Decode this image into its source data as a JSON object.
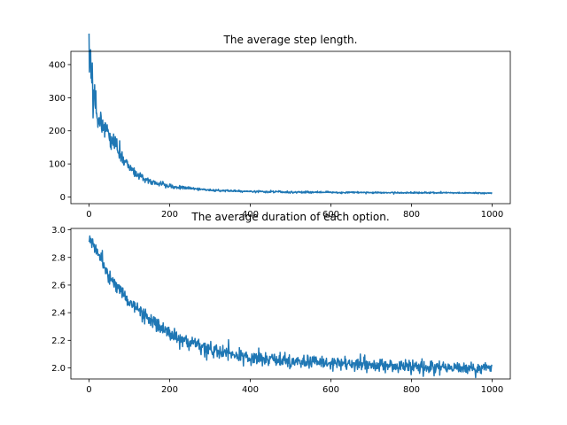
{
  "chart_data": [
    {
      "type": "line",
      "title": "The average step length.",
      "xlabel": "",
      "ylabel": "",
      "xlim": [
        -45,
        1045
      ],
      "ylim": [
        -20,
        440
      ],
      "xticks": [
        0,
        200,
        400,
        600,
        800,
        1000
      ],
      "yticks": [
        0,
        100,
        200,
        300,
        400
      ],
      "grid": false,
      "color": "#1f77b4",
      "n_points": 1000,
      "x_range": [
        0,
        999
      ],
      "keypoints": [
        {
          "x": 0,
          "y": 395
        },
        {
          "x": 3,
          "y": 410
        },
        {
          "x": 10,
          "y": 330
        },
        {
          "x": 20,
          "y": 255
        },
        {
          "x": 30,
          "y": 225
        },
        {
          "x": 40,
          "y": 210
        },
        {
          "x": 50,
          "y": 185
        },
        {
          "x": 60,
          "y": 170
        },
        {
          "x": 70,
          "y": 155
        },
        {
          "x": 80,
          "y": 120
        },
        {
          "x": 90,
          "y": 110
        },
        {
          "x": 100,
          "y": 90
        },
        {
          "x": 120,
          "y": 68
        },
        {
          "x": 140,
          "y": 55
        },
        {
          "x": 160,
          "y": 45
        },
        {
          "x": 180,
          "y": 38
        },
        {
          "x": 200,
          "y": 32
        },
        {
          "x": 250,
          "y": 26
        },
        {
          "x": 300,
          "y": 21
        },
        {
          "x": 400,
          "y": 17
        },
        {
          "x": 500,
          "y": 15
        },
        {
          "x": 600,
          "y": 14
        },
        {
          "x": 700,
          "y": 13.5
        },
        {
          "x": 800,
          "y": 13
        },
        {
          "x": 900,
          "y": 12.5
        },
        {
          "x": 999,
          "y": 12
        }
      ],
      "noise": 0.09
    },
    {
      "type": "line",
      "title": "The average duration of each option.",
      "xlabel": "",
      "ylabel": "",
      "xlim": [
        -45,
        1045
      ],
      "ylim": [
        1.92,
        3.01
      ],
      "xticks": [
        0,
        200,
        400,
        600,
        800,
        1000
      ],
      "yticks": [
        2.0,
        2.2,
        2.4,
        2.6,
        2.8,
        3.0
      ],
      "grid": false,
      "color": "#1f77b4",
      "n_points": 1000,
      "x_range": [
        0,
        999
      ],
      "keypoints": [
        {
          "x": 0,
          "y": 2.95
        },
        {
          "x": 20,
          "y": 2.84
        },
        {
          "x": 40,
          "y": 2.72
        },
        {
          "x": 60,
          "y": 2.62
        },
        {
          "x": 80,
          "y": 2.55
        },
        {
          "x": 100,
          "y": 2.48
        },
        {
          "x": 130,
          "y": 2.4
        },
        {
          "x": 160,
          "y": 2.33
        },
        {
          "x": 200,
          "y": 2.25
        },
        {
          "x": 250,
          "y": 2.17
        },
        {
          "x": 300,
          "y": 2.13
        },
        {
          "x": 350,
          "y": 2.1
        },
        {
          "x": 400,
          "y": 2.07
        },
        {
          "x": 500,
          "y": 2.05
        },
        {
          "x": 600,
          "y": 2.03
        },
        {
          "x": 700,
          "y": 2.02
        },
        {
          "x": 800,
          "y": 2.01
        },
        {
          "x": 900,
          "y": 2.0
        },
        {
          "x": 999,
          "y": 2.0
        }
      ],
      "noise": 0.025
    }
  ]
}
